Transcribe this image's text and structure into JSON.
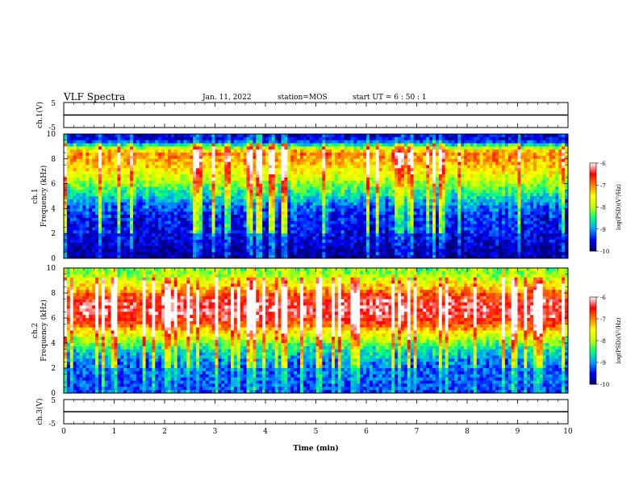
{
  "header": {
    "title": "VLF Spectra",
    "date": "Jan. 11, 2022",
    "station": "station=MOS",
    "start": "start  UT =  6 : 50 : 1"
  },
  "colors": {
    "frame": "#000000",
    "colormap": [
      "#000066",
      "#0000ff",
      "#00a0ff",
      "#00ff80",
      "#c0ff00",
      "#ffff00",
      "#ff8000",
      "#ff0000",
      "#ffffff"
    ]
  },
  "chart_data": [
    {
      "type": "line",
      "name": "ch1-voltage",
      "ylabel": "ch.1(V)",
      "yticks": [
        "5",
        "-5"
      ],
      "ylim": [
        -5,
        5
      ],
      "x": [
        0,
        10
      ],
      "y": [
        0,
        0
      ]
    },
    {
      "type": "heatmap",
      "name": "ch1-spectrogram",
      "ylabel": "ch.1\nFrequency (kHz)",
      "ylim": [
        0,
        10
      ],
      "yticks": [
        "0",
        "2",
        "4",
        "6",
        "8",
        "10"
      ],
      "xlim": [
        0,
        10
      ],
      "colorbar": {
        "label": "log(PSD)(V²/Hz)",
        "range": [
          -10,
          -6
        ],
        "ticks": [
          "-6",
          "-7",
          "-8",
          "-9",
          "-10"
        ]
      },
      "band_levels": [
        {
          "f": 0.5,
          "level": -9.8
        },
        {
          "f": 1.5,
          "level": -9.6
        },
        {
          "f": 2.5,
          "level": -9.5
        },
        {
          "f": 3.5,
          "level": -9.4
        },
        {
          "f": 4.5,
          "level": -9.0
        },
        {
          "f": 5.5,
          "level": -8.4
        },
        {
          "f": 6.5,
          "level": -7.8
        },
        {
          "f": 7.5,
          "level": -7.3
        },
        {
          "f": 8.5,
          "level": -7.0
        },
        {
          "f": 9.5,
          "level": -9.6
        }
      ]
    },
    {
      "type": "heatmap",
      "name": "ch2-spectrogram",
      "ylabel": "ch.2\nFrequency (kHz)",
      "ylim": [
        0,
        10
      ],
      "yticks": [
        "0",
        "2",
        "4",
        "6",
        "8",
        "10"
      ],
      "xlim": [
        0,
        10
      ],
      "colorbar": {
        "label": "log(PSD)(V²/Hz)",
        "range": [
          -10,
          -6
        ],
        "ticks": [
          "-6",
          "-7",
          "-8",
          "-9",
          "-10"
        ]
      },
      "band_levels": [
        {
          "f": 0.5,
          "level": -9.3
        },
        {
          "f": 1.5,
          "level": -9.2
        },
        {
          "f": 2.5,
          "level": -9.1
        },
        {
          "f": 3.5,
          "level": -8.6
        },
        {
          "f": 4.5,
          "level": -7.8
        },
        {
          "f": 5.5,
          "level": -6.8
        },
        {
          "f": 6.5,
          "level": -6.3
        },
        {
          "f": 7.5,
          "level": -6.5
        },
        {
          "f": 8.5,
          "level": -7.3
        },
        {
          "f": 9.5,
          "level": -8.2
        }
      ]
    },
    {
      "type": "line",
      "name": "ch3-voltage",
      "ylabel": "ch.3(V)",
      "yticks": [
        "5",
        "-5"
      ],
      "ylim": [
        -5,
        5
      ],
      "x": [
        0,
        10
      ],
      "y": [
        0,
        0
      ]
    }
  ],
  "xaxis": {
    "label": "Time  (min)",
    "ticks": [
      "0",
      "1",
      "2",
      "3",
      "4",
      "5",
      "6",
      "7",
      "8",
      "9",
      "10"
    ]
  }
}
